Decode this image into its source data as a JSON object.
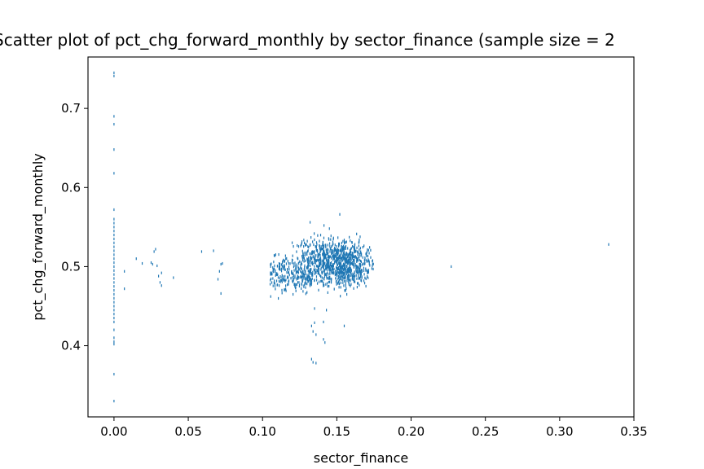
{
  "chart_data": {
    "type": "scatter",
    "title": "Scatter plot of pct_chg_forward_monthly by sector_finance (sample size = 2",
    "xlabel": "sector_finance",
    "ylabel": "pct_chg_forward_monthly",
    "xlim": [
      -0.0175,
      0.35
    ],
    "ylim": [
      0.31,
      0.765
    ],
    "x_ticks": [
      0.0,
      0.05,
      0.1,
      0.15,
      0.2,
      0.25,
      0.3,
      0.35
    ],
    "x_tick_labels": [
      "0.00",
      "0.05",
      "0.10",
      "0.15",
      "0.20",
      "0.25",
      "0.30",
      "0.35"
    ],
    "y_ticks": [
      0.4,
      0.5,
      0.6,
      0.7
    ],
    "y_tick_labels": [
      "0.4",
      "0.5",
      "0.6",
      "0.7"
    ],
    "grid": false,
    "legend": "none",
    "marker_color": "#1f77b4",
    "series": [
      {
        "points": [
          [
            0.0,
            0.745
          ],
          [
            0.0,
            0.741
          ],
          [
            0.0,
            0.69
          ],
          [
            0.0,
            0.68
          ],
          [
            0.0,
            0.648
          ],
          [
            0.0,
            0.618
          ],
          [
            0.0,
            0.572
          ],
          [
            0.0,
            0.56
          ],
          [
            0.0,
            0.555
          ],
          [
            0.0,
            0.55
          ],
          [
            0.0,
            0.545
          ],
          [
            0.0,
            0.54
          ],
          [
            0.0,
            0.535
          ],
          [
            0.0,
            0.53
          ],
          [
            0.0,
            0.525
          ],
          [
            0.0,
            0.52
          ],
          [
            0.0,
            0.515
          ],
          [
            0.0,
            0.51
          ],
          [
            0.0,
            0.505
          ],
          [
            0.0,
            0.5
          ],
          [
            0.0,
            0.495
          ],
          [
            0.0,
            0.49
          ],
          [
            0.0,
            0.485
          ],
          [
            0.0,
            0.48
          ],
          [
            0.0,
            0.475
          ],
          [
            0.0,
            0.47
          ],
          [
            0.0,
            0.465
          ],
          [
            0.0,
            0.46
          ],
          [
            0.0,
            0.455
          ],
          [
            0.0,
            0.45
          ],
          [
            0.0,
            0.445
          ],
          [
            0.0,
            0.44
          ],
          [
            0.0,
            0.435
          ],
          [
            0.0,
            0.43
          ],
          [
            0.0,
            0.42
          ],
          [
            0.0,
            0.41
          ],
          [
            0.0,
            0.405
          ],
          [
            0.0,
            0.402
          ],
          [
            0.0,
            0.364
          ],
          [
            0.0,
            0.33
          ],
          [
            0.007,
            0.494
          ],
          [
            0.007,
            0.472
          ],
          [
            0.015,
            0.51
          ],
          [
            0.019,
            0.504
          ],
          [
            0.025,
            0.505
          ],
          [
            0.026,
            0.503
          ],
          [
            0.027,
            0.519
          ],
          [
            0.028,
            0.522
          ],
          [
            0.029,
            0.501
          ],
          [
            0.03,
            0.488
          ],
          [
            0.031,
            0.48
          ],
          [
            0.032,
            0.476
          ],
          [
            0.032,
            0.492
          ],
          [
            0.04,
            0.486
          ],
          [
            0.059,
            0.519
          ],
          [
            0.067,
            0.52
          ],
          [
            0.07,
            0.484
          ],
          [
            0.071,
            0.494
          ],
          [
            0.072,
            0.503
          ],
          [
            0.072,
            0.466
          ],
          [
            0.073,
            0.504
          ],
          [
            0.227,
            0.5
          ],
          [
            0.333,
            0.528
          ]
        ]
      }
    ]
  }
}
